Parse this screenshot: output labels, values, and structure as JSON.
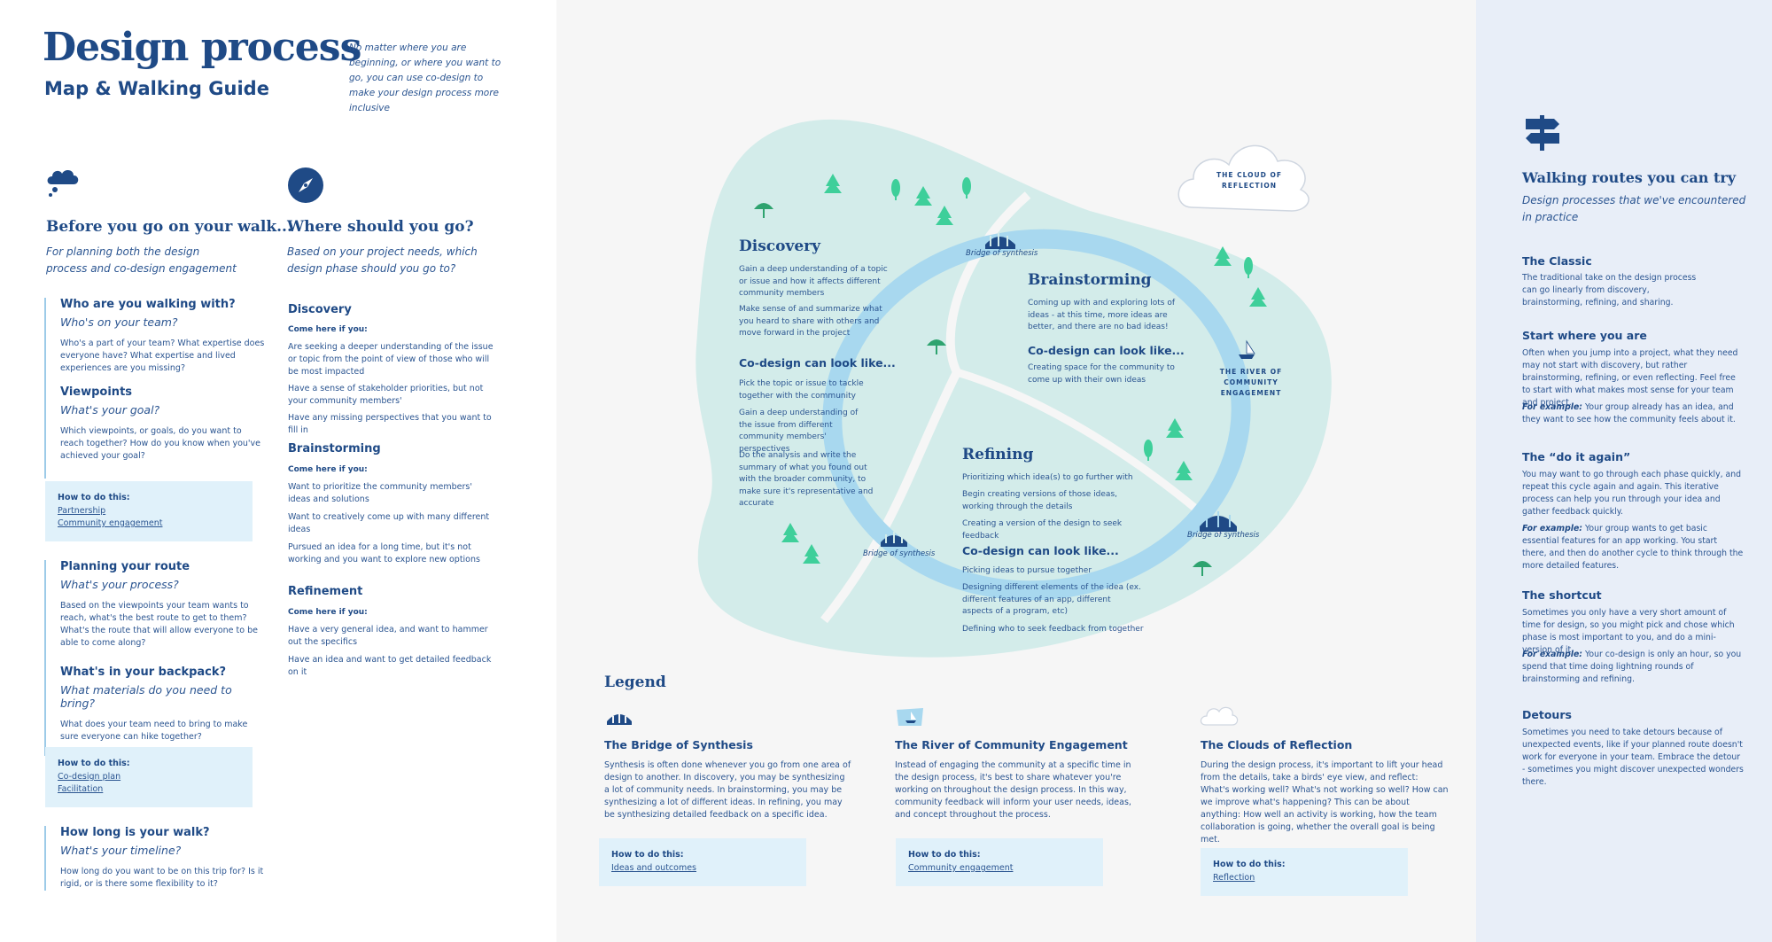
{
  "header": {
    "title": "Design process",
    "subtitle": "Map & Walking Guide",
    "intro": "No matter where you are beginning, or where you want to go, you can use co-design to make your design process more inclusive"
  },
  "before": {
    "icon": "thought-cloud-icon",
    "title": "Before you go on your walk...",
    "subtitle": "For planning both the design process and co-design engagement",
    "q1": {
      "h": "Who are you walking with?",
      "sub": "Who's on your team?",
      "text": "Who's a part of your team? What expertise does everyone have? What expertise and lived experiences are you missing?"
    },
    "q2": {
      "h": "Viewpoints",
      "sub": "What's your goal?",
      "text": "Which viewpoints, or goals, do you want to reach together? How do you know when you've achieved your goal?"
    },
    "box1": {
      "h": "How to do this:",
      "links": [
        "Partnership",
        "Community engagement"
      ]
    },
    "q3": {
      "h": "Planning your route",
      "sub": "What's your process?",
      "text": "Based on the viewpoints your team wants to reach, what's the best route to get to them? What's the route that will allow everyone to be able to come along?"
    },
    "q4": {
      "h": "What's in your backpack?",
      "sub": "What materials do you need to bring?",
      "text": "What does your team need to bring to make sure everyone can hike together?"
    },
    "box2": {
      "h": "How to do this:",
      "links": [
        "Co-design plan",
        "Facilitation"
      ]
    },
    "q5": {
      "h": "How long is your walk?",
      "sub": "What's your timeline?",
      "text": "How long do you want to be on this trip for? Is it rigid, or is there some flexibility to it?"
    }
  },
  "where": {
    "icon": "compass-icon",
    "title": "Where should you go?",
    "subtitle": "Based on your project needs, which design phase should you go to?",
    "come_here": "Come here if you:",
    "discovery": {
      "h": "Discovery",
      "items": [
        "Are seeking a deeper understanding of the issue or topic from the point of view of those who will be most impacted",
        "Have a sense of stakeholder priorities, but not your community members'",
        "Have any missing perspectives that you want to fill in"
      ]
    },
    "brainstorming": {
      "h": "Brainstorming",
      "items": [
        "Want to prioritize the community members' ideas and solutions",
        "Want to creatively come up with many different ideas",
        "Pursued an idea for a long time, but it's not working and you want to explore new options"
      ]
    },
    "refinement": {
      "h": "Refinement",
      "items": [
        "Have a very general idea, and want to hammer out the specifics",
        "Have an idea and want to get detailed feedback on it"
      ]
    }
  },
  "map": {
    "cloud_label": "THE CLOUD OF REFLECTION",
    "river_label": "THE RIVER OF COMMUNITY ENGAGEMENT",
    "bridge_label": "Bridge of synthesis",
    "codesign": "Co-design can look like...",
    "discovery": {
      "title": "Discovery",
      "p1": "Gain a deep understanding of a topic or issue and how it affects different community members",
      "p2": "Make sense of and summarize what you heard to share with others and move forward in the project",
      "c1": "Pick the topic or issue to tackle together with the community",
      "c2": "Gain a deep understanding of the issue from different community members' perspectives",
      "c3": "Do the analysis and write the summary of what you found out with the broader community, to make sure it's representative and accurate"
    },
    "brainstorming": {
      "title": "Brainstorming",
      "p1": "Coming up with and exploring lots of ideas - at this time, more ideas are better, and there are no bad ideas!",
      "c1": "Creating space for the community to come up with their own ideas"
    },
    "refining": {
      "title": "Refining",
      "p1": "Prioritizing which idea(s) to go further with",
      "p2": "Begin creating versions of those ideas, working through the details",
      "p3": "Creating a version of the design to seek feedback",
      "c1": "Picking ideas to pursue together",
      "c2": "Designing different elements of the idea  (ex. different features of an app, different aspects of a program, etc)",
      "c3": "Defining who to seek feedback from together"
    }
  },
  "legend": {
    "title": "Legend",
    "how": "How to do this:",
    "bridge": {
      "h": "The Bridge of Synthesis",
      "text": "Synthesis is often done whenever you go from one area of design to another. In discovery, you may be synthesizing a lot of community needs. In brainstorming, you may be synthesizing a lot of different ideas. In refining, you may be synthesizing detailed feedback on a specific idea.",
      "link": "Ideas and outcomes"
    },
    "river": {
      "h": "The River of Community Engagement",
      "text": "Instead of engaging the community at a specific time in the design process, it's best to share whatever you're working on throughout the design process. In this way, community feedback will inform your user needs, ideas, and concept throughout the process.",
      "link": "Community engagement"
    },
    "clouds": {
      "h": "The Clouds of Reflection",
      "text": "During the design process, it's important to lift your head from the details, take a birds' eye view, and reflect: What's working well? What's not working so well? How can we improve what's happening? This can be about anything: How well an activity is working, how the team collaboration is going, whether the overall goal is being met.",
      "link": "Reflection"
    }
  },
  "routes": {
    "icon": "signpost-icon",
    "title": "Walking routes you can try",
    "subtitle": "Design processes that we've encountered in practice",
    "for_example": "For example:",
    "classic": {
      "h": "The Classic",
      "text": "The traditional take on the design process can go linearly from discovery, brainstorming, refining, and sharing."
    },
    "start": {
      "h": "Start where you are",
      "text": "Often when you jump into a project, what they need may not start with discovery, but rather brainstorming, refining, or even reflecting. Feel free to start with what makes most sense for your team and project.",
      "example": "Your group already has an idea, and they want to see how the community feels about it."
    },
    "again": {
      "h": "The “do it again”",
      "text": "You may want to go through each phase quickly, and repeat this cycle again and again. This iterative process can help you run through your idea and gather feedback quickly.",
      "example": "Your group wants to get basic essential features for an app working. You start there, and then do another cycle to think through the more detailed features."
    },
    "shortcut": {
      "h": "The shortcut",
      "text": "Sometimes you only have a very short amount of time for design, so you might pick and chose which phase is most important to you, and do a mini-version of it.",
      "example": "Your co-design is only an hour, so you spend that time doing lightning rounds of brainstorming and refining."
    },
    "detours": {
      "h": "Detours",
      "text": "Sometimes you need to take detours because of unexpected events, like if your planned route doesn't work for everyone in your team. Embrace the detour - sometimes you might discover unexpected wonders there."
    }
  },
  "colors": {
    "navy": "#1f4a86",
    "island": "#d3ecea",
    "river": "#a8d8ef",
    "sky_box": "#e0f1fa",
    "tree": "#3ecf9a",
    "right_bg": "#e8eef8"
  }
}
